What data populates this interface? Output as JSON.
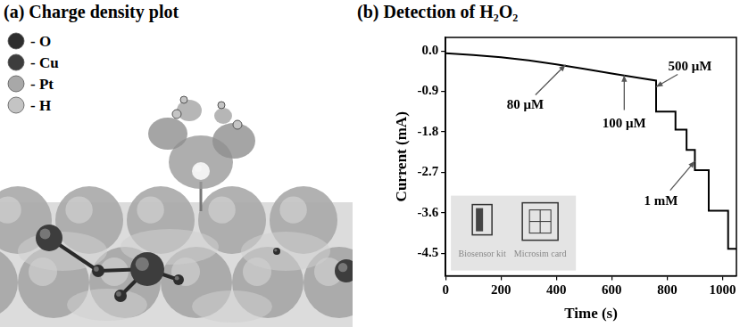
{
  "panel_a": {
    "title": "(a) Charge density plot",
    "legend": [
      {
        "label": "- O",
        "color": "#2e2e2e"
      },
      {
        "label": "- Cu",
        "color": "#3d3d3d"
      },
      {
        "label": "- Pt",
        "color": "#a8a8a8"
      },
      {
        "label": "- H",
        "color": "#c4c4c4"
      }
    ]
  },
  "chart_data": {
    "type": "line",
    "title": "(b) Detection of H₂O₂",
    "x_label": "Time (s)",
    "y_label": "Current (mA)",
    "x": [
      0,
      100,
      200,
      300,
      400,
      500,
      600,
      700,
      760,
      760,
      830,
      830,
      870,
      870,
      900,
      900,
      950,
      950,
      1020,
      1020,
      1050
    ],
    "values": [
      -0.05,
      -0.09,
      -0.14,
      -0.21,
      -0.3,
      -0.4,
      -0.5,
      -0.6,
      -0.66,
      -1.35,
      -1.35,
      -1.75,
      -1.75,
      -2.2,
      -2.2,
      -2.65,
      -2.65,
      -3.55,
      -3.55,
      -4.4,
      -4.4
    ],
    "color": "#000000",
    "xlim": [
      0,
      1050
    ],
    "xticks": [
      0,
      200,
      400,
      600,
      800,
      1000
    ],
    "ylim": [
      -5.0,
      0.3
    ],
    "yticks": [
      {
        "value": 0,
        "label": "0.0"
      },
      -0.9,
      -1.8,
      -2.7,
      -3.6,
      -4.5
    ],
    "grid": false,
    "annotations": [
      {
        "text": "80 μM",
        "x": 433,
        "y": -0.31
      },
      {
        "text": "100 μM",
        "x": 645,
        "y": -0.54
      },
      {
        "text": "500 μM",
        "x": 760,
        "y": -0.8
      },
      {
        "text": "1 mM",
        "x": 900,
        "y": -2.45
      }
    ],
    "inset": {
      "labels": [
        "Biosensor kit",
        "Microsim card"
      ]
    }
  }
}
